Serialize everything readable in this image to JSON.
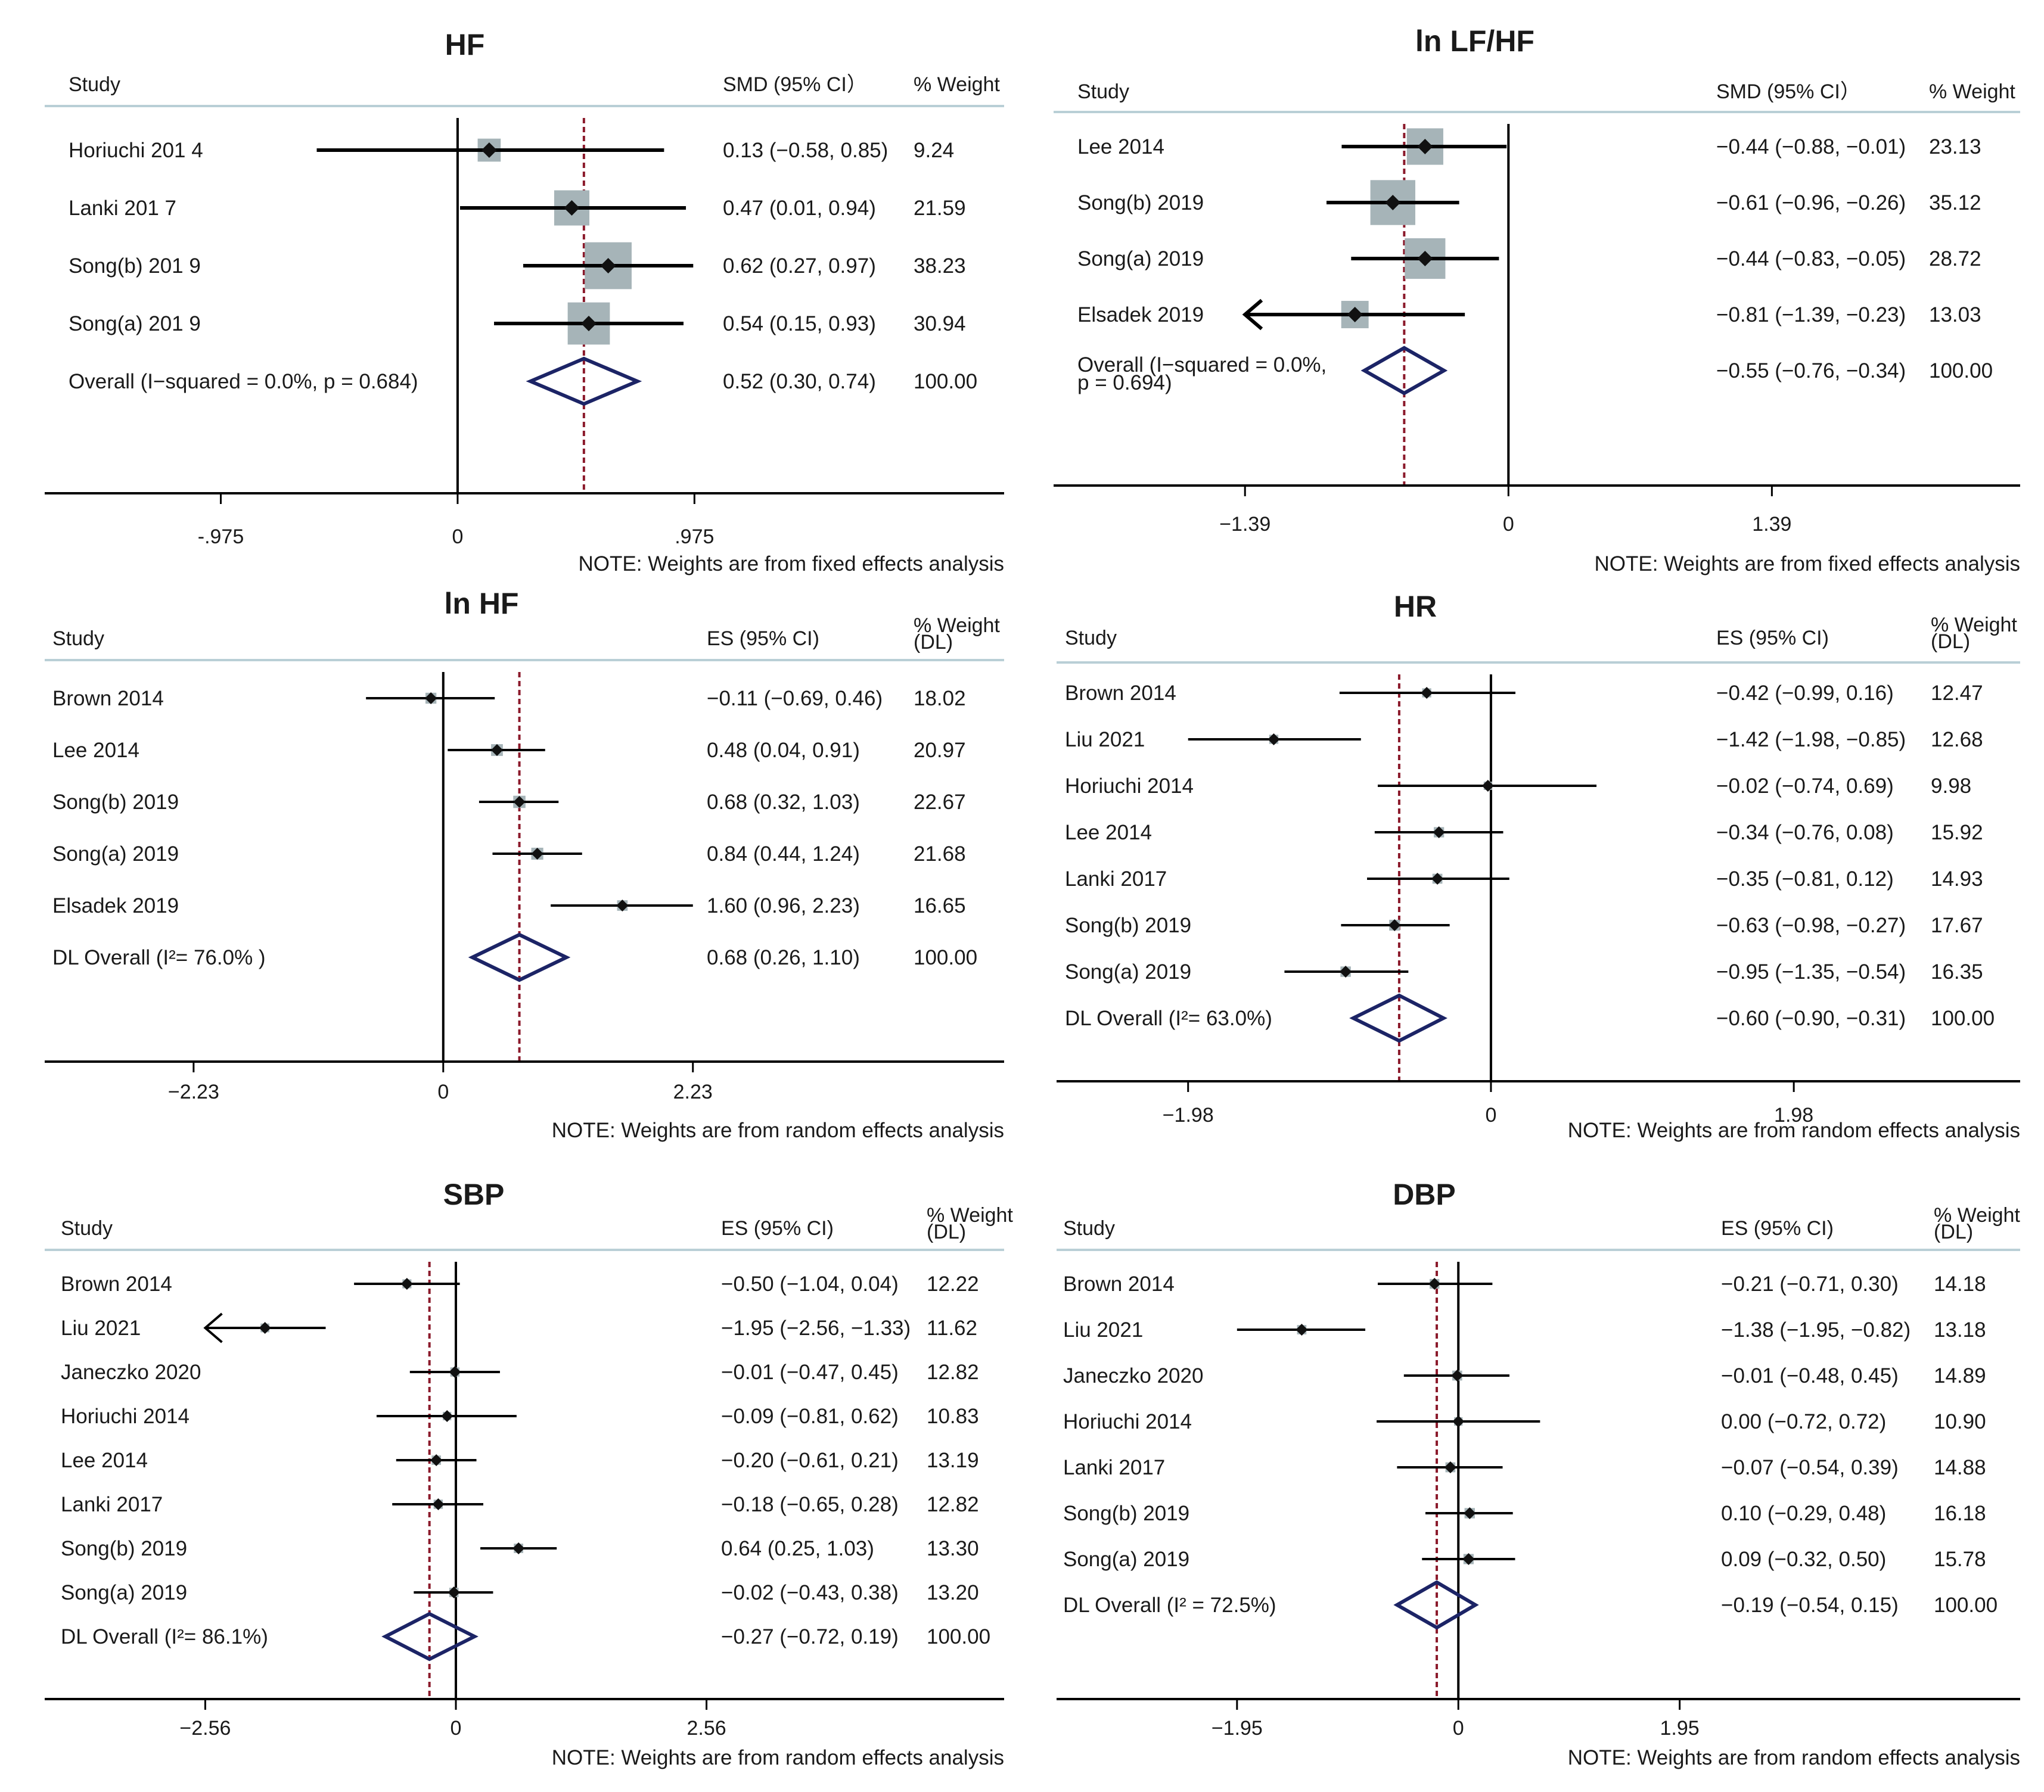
{
  "figure": {
    "colors": {
      "ci_line": "#000000",
      "weight_box": "#a6b4b8",
      "diamond": "#1c2466",
      "ref_line": "#8b1a2b",
      "header_rule": "#b9cfd6"
    }
  },
  "chart_data": [
    {
      "type": "forest",
      "title": "HF",
      "col_study": "Study",
      "col_effect": "SMD (95% CI）",
      "col_weight": "% Weight",
      "col_weight2": "",
      "xlim": [
        -1.7,
        2.25
      ],
      "ticks": [
        {
          "v": -0.975,
          "label": "-.975"
        },
        {
          "v": 0,
          "label": "0"
        },
        {
          "v": 0.975,
          "label": ".975"
        }
      ],
      "note": "NOTE: Weights are from fixed effects analysis",
      "rows": [
        {
          "study": "Horiuchi 201 4",
          "es": 0.13,
          "lo": -0.58,
          "hi": 0.85,
          "ci": "0.13 (−0.58, 0.85)",
          "weight": "9.24",
          "w": 9.24
        },
        {
          "study": "Lanki 201 7",
          "es": 0.47,
          "lo": 0.01,
          "hi": 0.94,
          "ci": "0.47 (0.01, 0.94)",
          "weight": "21.59",
          "w": 21.59
        },
        {
          "study": "Song(b) 201 9",
          "es": 0.62,
          "lo": 0.27,
          "hi": 0.97,
          "ci": "0.62 (0.27, 0.97)",
          "weight": "38.23",
          "w": 38.23
        },
        {
          "study": "Song(a) 201 9",
          "es": 0.54,
          "lo": 0.15,
          "hi": 0.93,
          "ci": "0.54 (0.15, 0.93)",
          "weight": "30.94",
          "w": 30.94
        }
      ],
      "overall": {
        "label": "Overall  (I−squared = 0.0%, p = 0.684)",
        "label2": "",
        "es": 0.52,
        "lo": 0.3,
        "hi": 0.74,
        "ci": "0.52 (0.30, 0.74)",
        "weight": "100.00"
      }
    },
    {
      "type": "forest",
      "title": "ln LF/HF",
      "col_study": "Study",
      "col_effect": "SMD (95% CI）",
      "col_weight": "% Weight",
      "col_weight2": "",
      "xlim": [
        -2.4,
        2.7
      ],
      "ticks": [
        {
          "v": -1.39,
          "label": "−1.39"
        },
        {
          "v": 0,
          "label": "0"
        },
        {
          "v": 1.39,
          "label": "1.39"
        }
      ],
      "note": "NOTE: Weights are from fixed effects analysis",
      "rows": [
        {
          "study": "Lee 2014",
          "es": -0.44,
          "lo": -0.88,
          "hi": -0.01,
          "ci": "−0.44 (−0.88, −0.01)",
          "weight": "23.13",
          "w": 23.13
        },
        {
          "study": "Song(b) 2019",
          "es": -0.61,
          "lo": -0.96,
          "hi": -0.26,
          "ci": "−0.61 (−0.96, −0.26)",
          "weight": "35.12",
          "w": 35.12
        },
        {
          "study": "Song(a) 2019",
          "es": -0.44,
          "lo": -0.83,
          "hi": -0.05,
          "ci": "−0.44 (−0.83, −0.05)",
          "weight": "28.72",
          "w": 28.72
        },
        {
          "study": "Elsadek 2019",
          "es": -0.81,
          "lo": -1.39,
          "hi": -0.23,
          "ci": "−0.81 (−1.39, −0.23)",
          "weight": "13.03",
          "w": 13.03,
          "arrow": "left"
        }
      ],
      "overall": {
        "label": "Overall  (I−squared = 0.0%,",
        "label2": "p = 0.694)",
        "es": -0.55,
        "lo": -0.76,
        "hi": -0.34,
        "ci": "−0.55 (−0.76, −0.34)",
        "weight": "100.00"
      }
    },
    {
      "type": "forest",
      "title": "ln HF",
      "col_study": "Study",
      "col_effect": "ES (95% CI)",
      "col_weight": "% Weight",
      "col_weight2": "(DL)",
      "xlim": [
        -3.56,
        5.01
      ],
      "ticks": [
        {
          "v": -2.23,
          "label": "−2.23"
        },
        {
          "v": 0,
          "label": "0"
        },
        {
          "v": 2.23,
          "label": "2.23"
        }
      ],
      "note": "NOTE: Weights are from random effects analysis",
      "rows": [
        {
          "study": "Brown 2014",
          "es": -0.11,
          "lo": -0.69,
          "hi": 0.46,
          "ci": "−0.11 (−0.69, 0.46)",
          "weight": "18.02",
          "w": 18.02
        },
        {
          "study": "Lee 2014",
          "es": 0.48,
          "lo": 0.04,
          "hi": 0.91,
          "ci": "0.48 (0.04, 0.91)",
          "weight": "20.97",
          "w": 20.97
        },
        {
          "study": "Song(b) 2019",
          "es": 0.68,
          "lo": 0.32,
          "hi": 1.03,
          "ci": "0.68 (0.32, 1.03)",
          "weight": "22.67",
          "w": 22.67
        },
        {
          "study": "Song(a) 2019",
          "es": 0.84,
          "lo": 0.44,
          "hi": 1.24,
          "ci": "0.84 (0.44, 1.24)",
          "weight": "21.68",
          "w": 21.68
        },
        {
          "study": "Elsadek 2019",
          "es": 1.6,
          "lo": 0.96,
          "hi": 2.23,
          "ci": "1.60 (0.96, 2.23)",
          "weight": "16.65",
          "w": 16.65
        }
      ],
      "overall": {
        "label": "DL Overall  (I²= 76.0% )",
        "label2": "",
        "es": 0.68,
        "lo": 0.26,
        "hi": 1.1,
        "ci": "0.68 (0.26, 1.10)",
        "weight": "100.00"
      }
    },
    {
      "type": "forest",
      "title": "HR",
      "col_study": "Study",
      "col_effect": "ES (95% CI)",
      "col_weight": "% Weight",
      "col_weight2": "(DL)",
      "xlim": [
        -2.84,
        3.46
      ],
      "ticks": [
        {
          "v": -1.98,
          "label": "−1.98"
        },
        {
          "v": 0,
          "label": "0"
        },
        {
          "v": 1.98,
          "label": "1.98"
        }
      ],
      "note": "NOTE: Weights are from random effects analysis",
      "rows": [
        {
          "study": "Brown 2014",
          "es": -0.42,
          "lo": -0.99,
          "hi": 0.16,
          "ci": "−0.42 (−0.99, 0.16)",
          "weight": "12.47",
          "w": 12.47
        },
        {
          "study": "Liu 2021",
          "es": -1.42,
          "lo": -1.98,
          "hi": -0.85,
          "ci": "−1.42 (−1.98, −0.85)",
          "weight": "12.68",
          "w": 12.68
        },
        {
          "study": "Horiuchi 2014",
          "es": -0.02,
          "lo": -0.74,
          "hi": 0.69,
          "ci": "−0.02 (−0.74, 0.69)",
          "weight": "9.98",
          "w": 9.98
        },
        {
          "study": "Lee 2014",
          "es": -0.34,
          "lo": -0.76,
          "hi": 0.08,
          "ci": "−0.34 (−0.76, 0.08)",
          "weight": "15.92",
          "w": 15.92
        },
        {
          "study": "Lanki 2017",
          "es": -0.35,
          "lo": -0.81,
          "hi": 0.12,
          "ci": "−0.35 (−0.81, 0.12)",
          "weight": "14.93",
          "w": 14.93
        },
        {
          "study": "Song(b) 2019",
          "es": -0.63,
          "lo": -0.98,
          "hi": -0.27,
          "ci": "−0.63 (−0.98, −0.27)",
          "weight": "17.67",
          "w": 17.67
        },
        {
          "study": "Song(a) 2019",
          "es": -0.95,
          "lo": -1.35,
          "hi": -0.54,
          "ci": "−0.95 (−1.35, −0.54)",
          "weight": "16.35",
          "w": 16.35
        }
      ],
      "overall": {
        "label": "DL Overall  (I²= 63.0%)",
        "label2": "",
        "es": -0.6,
        "lo": -0.9,
        "hi": -0.31,
        "ci": "−0.60 (−0.90, −0.31)",
        "weight": "100.00"
      }
    },
    {
      "type": "forest",
      "title": "SBP",
      "col_study": "Study",
      "col_effect": "ES (95% CI)",
      "col_weight": "% Weight",
      "col_weight2": "(DL)",
      "xlim": [
        -4.2,
        5.6
      ],
      "ticks": [
        {
          "v": -2.56,
          "label": "−2.56"
        },
        {
          "v": 0,
          "label": "0"
        },
        {
          "v": 2.56,
          "label": "2.56"
        }
      ],
      "note": "NOTE: Weights are from random effects analysis",
      "rows": [
        {
          "study": "Brown 2014",
          "es": -0.5,
          "lo": -1.04,
          "hi": 0.04,
          "ci": "−0.50 (−1.04, 0.04)",
          "weight": "12.22",
          "w": 12.22
        },
        {
          "study": "Liu 2021",
          "es": -1.95,
          "lo": -2.56,
          "hi": -1.33,
          "ci": "−1.95 (−2.56, −1.33)",
          "weight": "11.62",
          "w": 11.62,
          "arrow": "left"
        },
        {
          "study": "Janeczko 2020",
          "es": -0.01,
          "lo": -0.47,
          "hi": 0.45,
          "ci": "−0.01 (−0.47, 0.45)",
          "weight": "12.82",
          "w": 12.82
        },
        {
          "study": "Horiuchi 2014",
          "es": -0.09,
          "lo": -0.81,
          "hi": 0.62,
          "ci": "−0.09 (−0.81, 0.62)",
          "weight": "10.83",
          "w": 10.83
        },
        {
          "study": "Lee 2014",
          "es": -0.2,
          "lo": -0.61,
          "hi": 0.21,
          "ci": "−0.20 (−0.61, 0.21)",
          "weight": "13.19",
          "w": 13.19
        },
        {
          "study": "Lanki 2017",
          "es": -0.18,
          "lo": -0.65,
          "hi": 0.28,
          "ci": "−0.18 (−0.65, 0.28)",
          "weight": "12.82",
          "w": 12.82
        },
        {
          "study": "Song(b) 2019",
          "es": 0.64,
          "lo": 0.25,
          "hi": 1.03,
          "ci": "0.64 (0.25, 1.03)",
          "weight": "13.30",
          "w": 13.3
        },
        {
          "study": "Song(a) 2019",
          "es": -0.02,
          "lo": -0.43,
          "hi": 0.38,
          "ci": "−0.02 (−0.43, 0.38)",
          "weight": "13.20",
          "w": 13.2
        }
      ],
      "overall": {
        "label": "DL Overall  (I²= 86.1%)",
        "label2": "",
        "es": -0.27,
        "lo": -0.72,
        "hi": 0.19,
        "ci": "−0.27 (−0.72, 0.19)",
        "weight": "100.00"
      }
    },
    {
      "type": "forest",
      "title": "DBP",
      "col_study": "Study",
      "col_effect": "ES (95% CI)",
      "col_weight": "% Weight",
      "col_weight2": "(DL)",
      "xlim": [
        -3.54,
        4.95
      ],
      "ticks": [
        {
          "v": -1.95,
          "label": "−1.95"
        },
        {
          "v": 0,
          "label": "0"
        },
        {
          "v": 1.95,
          "label": "1.95"
        }
      ],
      "note": "NOTE: Weights are from random effects analysis",
      "rows": [
        {
          "study": "Brown 2014",
          "es": -0.21,
          "lo": -0.71,
          "hi": 0.3,
          "ci": "−0.21 (−0.71, 0.30)",
          "weight": "14.18",
          "w": 14.18
        },
        {
          "study": "Liu 2021",
          "es": -1.38,
          "lo": -1.95,
          "hi": -0.82,
          "ci": "−1.38 (−1.95, −0.82)",
          "weight": "13.18",
          "w": 13.18
        },
        {
          "study": "Janeczko 2020",
          "es": -0.01,
          "lo": -0.48,
          "hi": 0.45,
          "ci": "−0.01 (−0.48, 0.45)",
          "weight": "14.89",
          "w": 14.89
        },
        {
          "study": "Horiuchi 2014",
          "es": 0.0,
          "lo": -0.72,
          "hi": 0.72,
          "ci": "0.00 (−0.72, 0.72)",
          "weight": "10.90",
          "w": 10.9
        },
        {
          "study": "Lanki 2017",
          "es": -0.07,
          "lo": -0.54,
          "hi": 0.39,
          "ci": "−0.07 (−0.54, 0.39)",
          "weight": "14.88",
          "w": 14.88
        },
        {
          "study": "Song(b) 2019",
          "es": 0.1,
          "lo": -0.29,
          "hi": 0.48,
          "ci": "0.10 (−0.29, 0.48)",
          "weight": "16.18",
          "w": 16.18
        },
        {
          "study": "Song(a) 2019",
          "es": 0.09,
          "lo": -0.32,
          "hi": 0.5,
          "ci": "0.09 (−0.32, 0.50)",
          "weight": "15.78",
          "w": 15.78
        }
      ],
      "overall": {
        "label": "DL Overall  (I² = 72.5%)",
        "label2": "",
        "es": -0.19,
        "lo": -0.54,
        "hi": 0.15,
        "ci": "−0.19 (−0.54, 0.15)",
        "weight": "100.00"
      }
    }
  ]
}
